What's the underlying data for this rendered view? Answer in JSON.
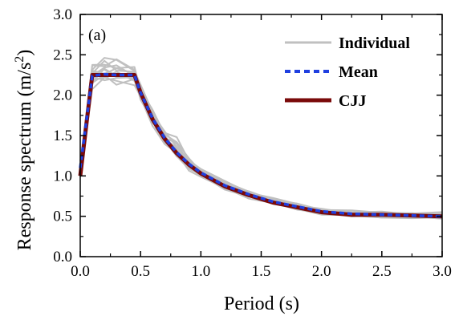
{
  "chart_data": {
    "type": "line",
    "panel_label": "(a)",
    "xlabel": "Period (s)",
    "ylabel": "Response spectrum (m/s",
    "ylabel_sup": "2",
    "ylabel_close": ")",
    "xlim": [
      0,
      3
    ],
    "ylim": [
      0,
      3
    ],
    "xticks": [
      "0.0",
      "0.5",
      "1.0",
      "1.5",
      "2.0",
      "2.5",
      "3.0"
    ],
    "yticks": [
      "0.0",
      "0.5",
      "1.0",
      "1.5",
      "2.0",
      "2.5",
      "3.0"
    ],
    "grid": false,
    "legend_position": "top-right",
    "colors": {
      "individual": "#c0c0c0",
      "mean": "#1f3fe0",
      "cjj": "#7a0a0a"
    },
    "series": [
      {
        "name": "CJJ",
        "x": [
          0.0,
          0.1,
          0.45,
          0.5,
          0.6,
          0.7,
          0.8,
          0.9,
          1.0,
          1.2,
          1.4,
          1.6,
          1.8,
          2.0,
          2.25,
          2.5,
          2.75,
          3.0
        ],
        "y": [
          1.0,
          2.25,
          2.25,
          2.03,
          1.7,
          1.46,
          1.28,
          1.14,
          1.03,
          0.87,
          0.76,
          0.67,
          0.61,
          0.55,
          0.52,
          0.52,
          0.51,
          0.5
        ]
      },
      {
        "name": "Mean",
        "x": [
          0.0,
          0.1,
          0.2,
          0.3,
          0.45,
          0.5,
          0.6,
          0.7,
          0.8,
          0.9,
          1.0,
          1.2,
          1.4,
          1.6,
          1.8,
          2.0,
          2.25,
          2.5,
          2.75,
          3.0
        ],
        "y": [
          1.1,
          2.24,
          2.26,
          2.25,
          2.25,
          2.03,
          1.71,
          1.47,
          1.29,
          1.15,
          1.04,
          0.88,
          0.77,
          0.68,
          0.62,
          0.56,
          0.53,
          0.52,
          0.51,
          0.5
        ]
      },
      {
        "name": "Individual",
        "x": [
          0.0,
          0.1,
          0.2,
          0.3,
          0.45,
          0.5,
          0.6,
          0.7,
          0.8,
          0.9,
          1.0,
          1.2,
          1.4,
          1.6,
          1.8,
          2.0,
          2.25,
          2.5,
          2.75,
          3.0
        ],
        "y_band_low": [
          0.95,
          2.05,
          2.1,
          2.08,
          2.1,
          1.9,
          1.58,
          1.36,
          1.18,
          1.05,
          0.95,
          0.81,
          0.71,
          0.63,
          0.57,
          0.51,
          0.48,
          0.47,
          0.46,
          0.45
        ],
        "y_band_high": [
          1.2,
          2.45,
          2.52,
          2.5,
          2.4,
          2.15,
          1.85,
          1.6,
          1.5,
          1.25,
          1.12,
          0.95,
          0.83,
          0.74,
          0.67,
          0.61,
          0.58,
          0.57,
          0.56,
          0.56
        ]
      }
    ]
  }
}
